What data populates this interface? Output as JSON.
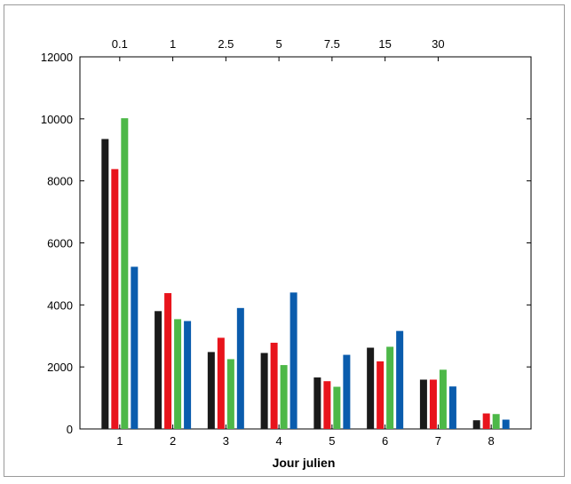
{
  "chart_data": {
    "type": "bar",
    "xlabel": "Jour julien",
    "ylabel": "",
    "ylim": [
      0,
      12000
    ],
    "yticks": [
      0,
      2000,
      4000,
      6000,
      8000,
      10000,
      12000
    ],
    "categories": [
      "1",
      "2",
      "3",
      "4",
      "5",
      "6",
      "7",
      "8"
    ],
    "top_axis_labels": [
      "0.1",
      "1",
      "2.5",
      "5",
      "7.5",
      "15",
      "30"
    ],
    "top_axis_positions": [
      0.5,
      1.5,
      2.5,
      3.5,
      4.5,
      5.5,
      6.5
    ],
    "grid": false,
    "legend": "none",
    "series": [
      {
        "color": "#1a1a1a",
        "values": [
          9350,
          3800,
          2480,
          2450,
          1660,
          2620,
          1590,
          280
        ]
      },
      {
        "color": "#e8141c",
        "values": [
          8380,
          4380,
          2940,
          2780,
          1540,
          2180,
          1590,
          500
        ]
      },
      {
        "color": "#4db848",
        "values": [
          10020,
          3540,
          2250,
          2060,
          1360,
          2650,
          1910,
          480
        ]
      },
      {
        "color": "#0a5cad",
        "values": [
          5230,
          3480,
          3900,
          4400,
          2390,
          3160,
          1370,
          300
        ]
      }
    ]
  }
}
